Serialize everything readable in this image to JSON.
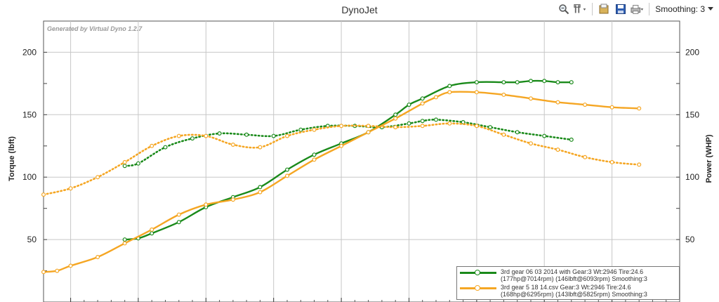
{
  "window": {
    "title": "DynoJet"
  },
  "toolbar": {
    "smoothing_label": "Smoothing: 3",
    "icons": [
      "zoom-icon",
      "tools-icon",
      "open-icon",
      "save-icon",
      "print-icon"
    ]
  },
  "watermark": "Generated by Virtual Dyno 1.2.7",
  "legend": {
    "items": [
      {
        "line1": "3rd gear 06 03 2014 with  Gear:3 Wt:2946 Tire:24.6",
        "line2": "(177hp@7014rpm) (146lbft@6093rpm) Smoothing:3",
        "color": "#1a8a1a"
      },
      {
        "line1": "3rd gear 5 18 14.csv Gear:3 Wt:2946 Tire:24.6",
        "line2": "(168hp@6295rpm) (143lbft@5825rpm) Smoothing:3",
        "color": "#f5a623"
      }
    ]
  },
  "chart_data": {
    "type": "line",
    "title": "DynoJet",
    "ylabel_left": "Torque (lbft)",
    "ylabel_right": "Power (WHP)",
    "xlabel": "",
    "x_units": "rpm",
    "xlim": [
      3300,
      8000
    ],
    "ylim": [
      0,
      225
    ],
    "y_ticks": [
      50,
      100,
      150,
      200
    ],
    "grid": true,
    "legend_position": "bottom-right",
    "series": [
      {
        "name": "3rd gear 06 03 2014 with  Gear:3 Wt:2946 Tire:24.6 (177hp@7014rpm) (146lbft@6093rpm) Smoothing:3",
        "metric": "power",
        "color": "#1a8a1a",
        "style": "solid",
        "x": [
          3900,
          4000,
          4100,
          4300,
          4500,
          4700,
          4900,
          5100,
          5300,
          5500,
          5700,
          5900,
          6000,
          6100,
          6300,
          6500,
          6700,
          6800,
          6900,
          7000,
          7100,
          7200
        ],
        "y": [
          50,
          51,
          55,
          64,
          76,
          84,
          92,
          106,
          118,
          127,
          136,
          150,
          158,
          163,
          173,
          176,
          176,
          176,
          177,
          177,
          176,
          176
        ]
      },
      {
        "name": "3rd gear 06 03 2014 with  Gear:3 Wt:2946 Tire:24.6 (177hp@7014rpm) (146lbft@6093rpm) Smoothing:3",
        "metric": "torque",
        "color": "#1a8a1a",
        "style": "dotted",
        "x": [
          3900,
          4000,
          4200,
          4400,
          4600,
          4800,
          5000,
          5200,
          5400,
          5600,
          5800,
          6000,
          6100,
          6200,
          6400,
          6600,
          6800,
          7000,
          7200
        ],
        "y": [
          109,
          111,
          124,
          131,
          135,
          134,
          133,
          138,
          141,
          141,
          140,
          143,
          145,
          146,
          144,
          140,
          136,
          133,
          130
        ]
      },
      {
        "name": "3rd gear 5 18 14.csv Gear:3 Wt:2946 Tire:24.6 (168hp@6295rpm) (143lbft@5825rpm) Smoothing:3",
        "metric": "power",
        "color": "#f5a623",
        "style": "solid",
        "x": [
          3300,
          3400,
          3500,
          3700,
          3900,
          4100,
          4300,
          4500,
          4700,
          4900,
          5100,
          5300,
          5500,
          5700,
          5900,
          6100,
          6200,
          6300,
          6500,
          6700,
          6900,
          7100,
          7300,
          7500,
          7700
        ],
        "y": [
          24,
          25,
          29,
          36,
          47,
          58,
          70,
          78,
          82,
          88,
          101,
          114,
          125,
          136,
          147,
          159,
          164,
          168,
          168,
          166,
          163,
          160,
          158,
          156,
          155
        ]
      },
      {
        "name": "3rd gear 5 18 14.csv Gear:3 Wt:2946 Tire:24.6 (168hp@6295rpm) (143lbft@5825rpm) Smoothing:3",
        "metric": "torque",
        "color": "#f5a623",
        "style": "dotted",
        "x": [
          3300,
          3500,
          3700,
          3900,
          4100,
          4300,
          4500,
          4700,
          4900,
          5100,
          5300,
          5500,
          5700,
          5900,
          6100,
          6300,
          6500,
          6700,
          6900,
          7100,
          7300,
          7500,
          7700
        ],
        "y": [
          86,
          91,
          100,
          112,
          125,
          133,
          133,
          126,
          124,
          133,
          138,
          141,
          141,
          140,
          141,
          143,
          141,
          134,
          127,
          122,
          116,
          112,
          110
        ]
      }
    ]
  }
}
